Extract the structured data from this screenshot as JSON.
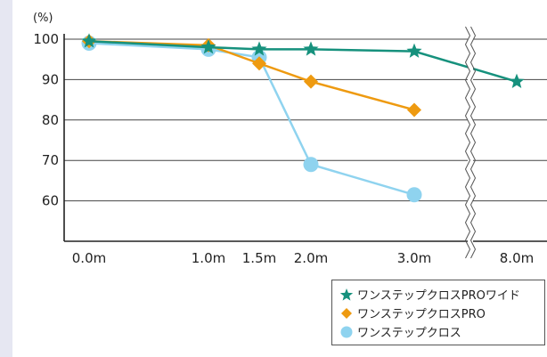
{
  "unit_label": "(%)",
  "chart_data": {
    "type": "line",
    "categories": [
      "0.0m",
      "1.0m",
      "1.5m",
      "2.0m",
      "3.0m",
      "8.0m"
    ],
    "ylim": [
      50,
      100
    ],
    "yticks": [
      100,
      90,
      80,
      70,
      60
    ],
    "grid": true,
    "axis_break": "between 3.0m and 8.0m",
    "legend_position": "bottom-right",
    "series": [
      {
        "name": "ワンステップクロスPROワイド",
        "marker": "star",
        "color": "#16917d",
        "values": [
          99.5,
          98,
          97.5,
          97.5,
          97,
          89.5
        ]
      },
      {
        "name": "ワンステップクロスPRO",
        "marker": "diamond",
        "color": "#ee9a10",
        "values": [
          99.5,
          98.5,
          94,
          89.5,
          82.5,
          null
        ]
      },
      {
        "name": "ワンステップクロス",
        "marker": "circle",
        "color": "#8fd3ef",
        "values": [
          99,
          97.5,
          95.5,
          69,
          61.5,
          null
        ]
      }
    ]
  }
}
